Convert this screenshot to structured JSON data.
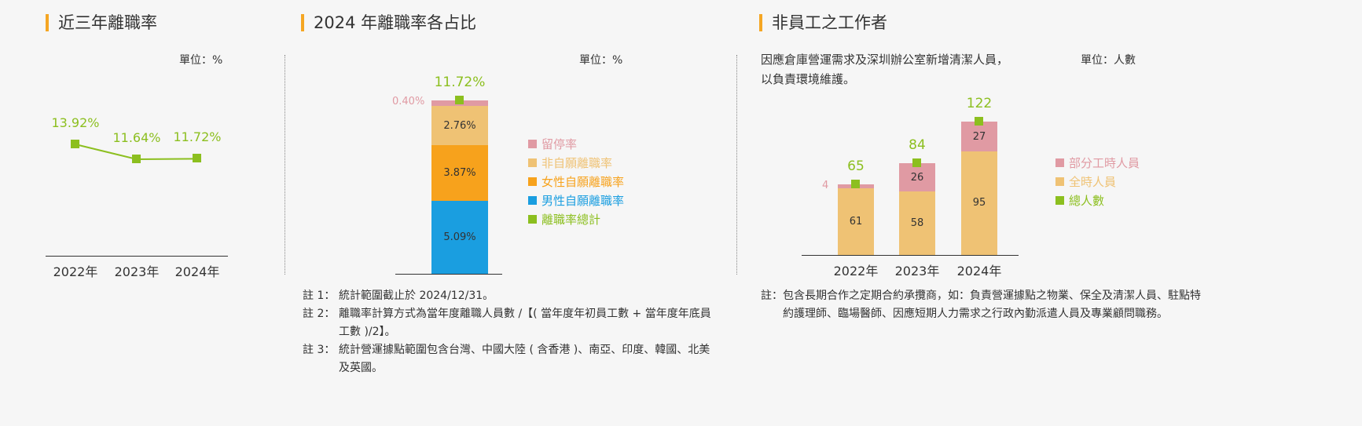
{
  "panels": [
    {
      "title": "近三年離職率",
      "unit": "單位：%"
    },
    {
      "title": "2024 年離職率各占比",
      "unit": "單位：%"
    },
    {
      "title": "非員工之工作者",
      "unit": "單位：人數",
      "desc": "因應倉庫營運需求及深圳辦公室新增清潔人員，以負責環境維護。"
    }
  ],
  "colors": {
    "accent": "#f5a623",
    "green": "#8cbf1f",
    "pink": "#e09aa3",
    "light": "#efc274",
    "orange": "#f7a21c",
    "blue": "#1a9ee0"
  },
  "chart_data": [
    {
      "type": "line",
      "categories": [
        "2022年",
        "2023年",
        "2024年"
      ],
      "values": [
        13.92,
        11.64,
        11.72
      ],
      "labels": [
        "13.92%",
        "11.64%",
        "11.72%"
      ]
    },
    {
      "type": "bar",
      "stacked": true,
      "categories": [
        "2024"
      ],
      "series": [
        {
          "name": "男性自願離職率",
          "value": 5.09,
          "label": "5.09%",
          "color": "#1a9ee0"
        },
        {
          "name": "女性自願離職率",
          "value": 3.87,
          "label": "3.87%",
          "color": "#f7a21c"
        },
        {
          "name": "非自願離職率",
          "value": 2.76,
          "label": "2.76%",
          "color": "#efc274"
        },
        {
          "name": "留停率",
          "value": 0.4,
          "label": "0.40%",
          "color": "#e09aa3"
        }
      ],
      "total": {
        "name": "離職率總計",
        "value": 11.72,
        "label": "11.72%"
      }
    },
    {
      "type": "bar",
      "stacked": true,
      "categories": [
        "2022年",
        "2023年",
        "2024年"
      ],
      "series": [
        {
          "name": "全時人員",
          "values": [
            61,
            58,
            95
          ],
          "color": "#efc274"
        },
        {
          "name": "部分工時人員",
          "values": [
            4,
            26,
            27
          ],
          "color": "#e09aa3"
        }
      ],
      "total": {
        "name": "總人數",
        "values": [
          65,
          84,
          122
        ]
      }
    }
  ],
  "notes2": [
    {
      "k": "註 1：",
      "t": "統計範圍截止於 2024/12/31。"
    },
    {
      "k": "註 2：",
      "t": "離職率計算方式為當年度離職人員數 /【( 當年度年初員工數 + 當年度年底員工數 )/2】。"
    },
    {
      "k": "註 3：",
      "t": "統計營運據點範圍包含台灣、中國大陸 ( 含香港 )、南亞、印度、韓國、北美及英國。"
    }
  ],
  "notes3": [
    {
      "k": "註：",
      "t": "包含長期合作之定期合約承攬商，如：負責營運據點之物業、保全及清潔人員、駐點特約護理師、臨場醫師、因應短期人力需求之行政內勤派遣人員及專業顧問職務。"
    }
  ]
}
